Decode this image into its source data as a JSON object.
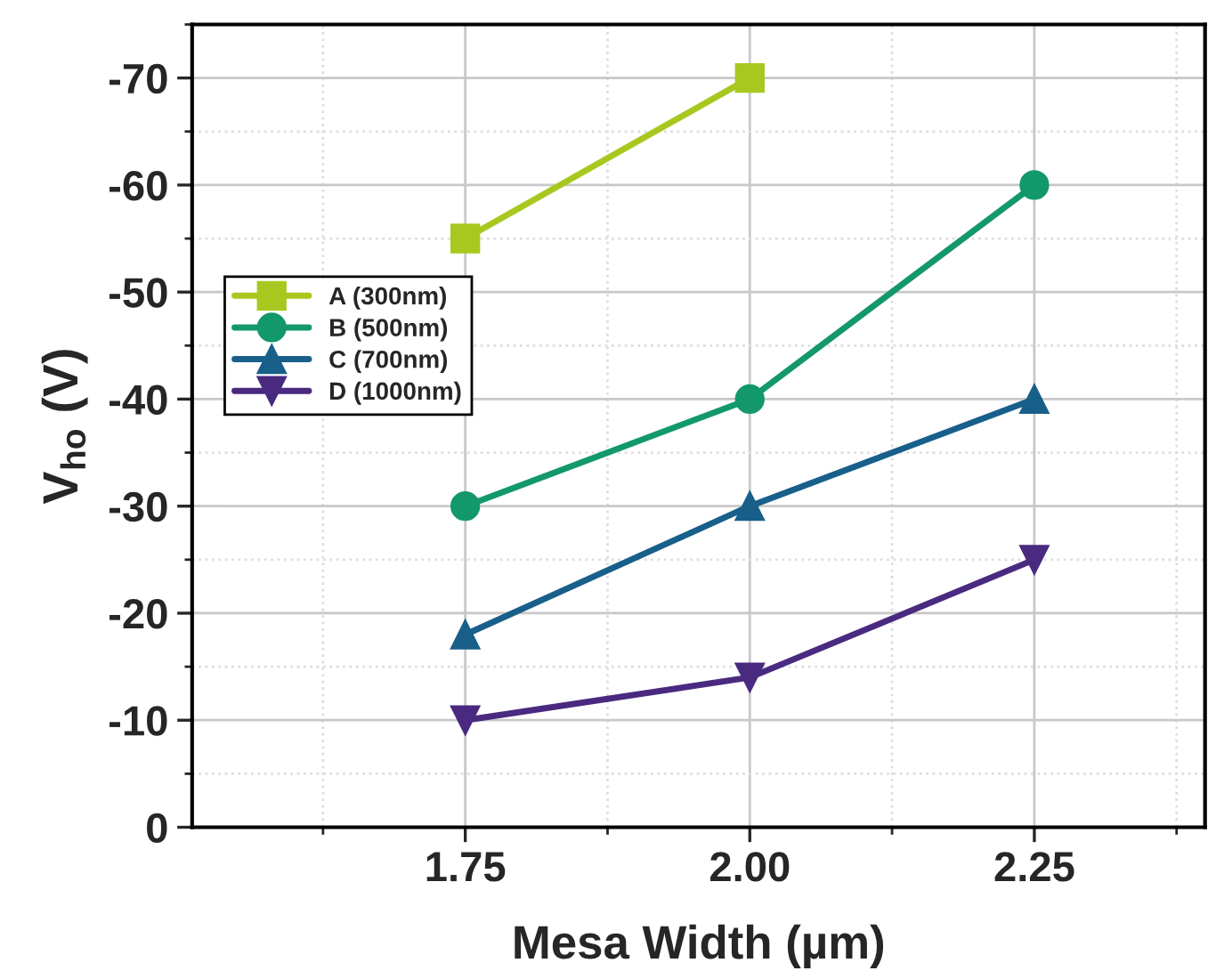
{
  "chart_data": {
    "type": "line",
    "xlabel": "Mesa Width (µm)",
    "ylabel": "V$_{ho}$ (V)",
    "x": [
      1.75,
      2.0,
      2.25
    ],
    "series": [
      {
        "name": "A (300nm)",
        "color": "#a8c820",
        "marker": "square",
        "values": [
          -55,
          -70,
          null
        ]
      },
      {
        "name": "B (500nm)",
        "color": "#13986c",
        "marker": "circle",
        "values": [
          -30,
          -40,
          -60
        ]
      },
      {
        "name": "C (700nm)",
        "color": "#185f8a",
        "marker": "triangle",
        "values": [
          -18,
          -30,
          -40
        ]
      },
      {
        "name": "D (1000nm)",
        "color": "#4a2a80",
        "marker": "triangle_down",
        "values": [
          -10,
          -14,
          -25
        ]
      }
    ],
    "xlim": [
      1.51,
      2.4
    ],
    "xticks": [
      {
        "value": 1.75,
        "label": "1.75"
      },
      {
        "value": 2.0,
        "label": "2.00"
      },
      {
        "value": 2.25,
        "label": "2.25"
      }
    ],
    "ylim": [
      0,
      -75
    ],
    "yticks": [
      0,
      -10,
      -20,
      -30,
      -40,
      -50,
      -60,
      -70
    ],
    "grid": true,
    "legend": "left",
    "line_style": "solid"
  }
}
